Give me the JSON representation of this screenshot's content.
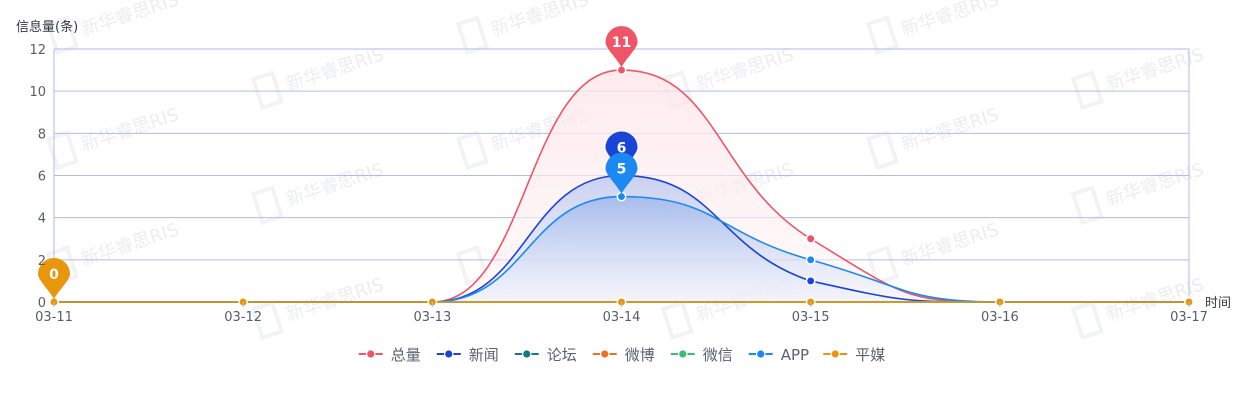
{
  "chart_data": {
    "type": "line",
    "ylabel": "信息量(条)",
    "xlabel": "时间",
    "categories": [
      "03-11",
      "03-12",
      "03-13",
      "03-14",
      "03-15",
      "03-16",
      "03-17"
    ],
    "y_ticks": [
      "0",
      "2",
      "4",
      "6",
      "8",
      "10",
      "12"
    ],
    "ylim": [
      0,
      12
    ],
    "smooth": true,
    "grid": true,
    "legend_position": "bottom-center",
    "watermark": "新华睿思RIS",
    "series": [
      {
        "name": "总量",
        "color": "#ee5566",
        "values": [
          0,
          0,
          0,
          11,
          3,
          0,
          0
        ],
        "area": true,
        "max_pin": "11"
      },
      {
        "name": "新闻",
        "color": "#1a44d6",
        "values": [
          0,
          0,
          0,
          6,
          1,
          0,
          0
        ],
        "area": true,
        "max_pin": "6"
      },
      {
        "name": "论坛",
        "color": "#127a88",
        "values": [
          0,
          0,
          0,
          0,
          0,
          0,
          0
        ],
        "area": false
      },
      {
        "name": "微博",
        "color": "#f07020",
        "values": [
          0,
          0,
          0,
          0,
          0,
          0,
          0
        ],
        "area": false
      },
      {
        "name": "微信",
        "color": "#3cbd73",
        "values": [
          0,
          0,
          0,
          0,
          0,
          0,
          0
        ],
        "area": false
      },
      {
        "name": "APP",
        "color": "#1a8af2",
        "values": [
          0,
          0,
          0,
          5,
          2,
          0,
          0
        ],
        "area": true,
        "max_pin": "5"
      },
      {
        "name": "平媒",
        "color": "#e8960c",
        "values": [
          0,
          0,
          0,
          0,
          0,
          0,
          0
        ],
        "area": false,
        "max_pin": "0"
      }
    ]
  }
}
